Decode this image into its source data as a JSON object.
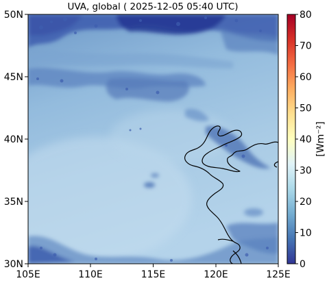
{
  "title": "UVA, global ( 2025-12-05 05:40 UTC)",
  "map": {
    "lat_ticks": [
      "50N",
      "45N",
      "40N",
      "35N",
      "30N"
    ],
    "lon_ticks": [
      "105E",
      "110E",
      "115E",
      "120E",
      "125E"
    ],
    "lat_range": [
      30,
      50
    ],
    "lon_range": [
      105,
      125
    ],
    "field_colors": {
      "deep": "#2b3f9c",
      "mid": "#4a78b8",
      "base": "#8fb6d9",
      "light": "#c9e0ee",
      "coastline": "#000000"
    }
  },
  "colorbar": {
    "label": "[Wm⁻²]",
    "ticks": [
      "80",
      "70",
      "60",
      "50",
      "40",
      "30",
      "20",
      "10",
      "0"
    ],
    "range": [
      0,
      80
    ],
    "colormap": "RdYlBu_r",
    "stops": [
      "#313695",
      "#4575b4",
      "#74add1",
      "#abd9e9",
      "#e0f3f8",
      "#ffffbf",
      "#fee090",
      "#fdae61",
      "#f46d43",
      "#d73027",
      "#a50026"
    ]
  }
}
